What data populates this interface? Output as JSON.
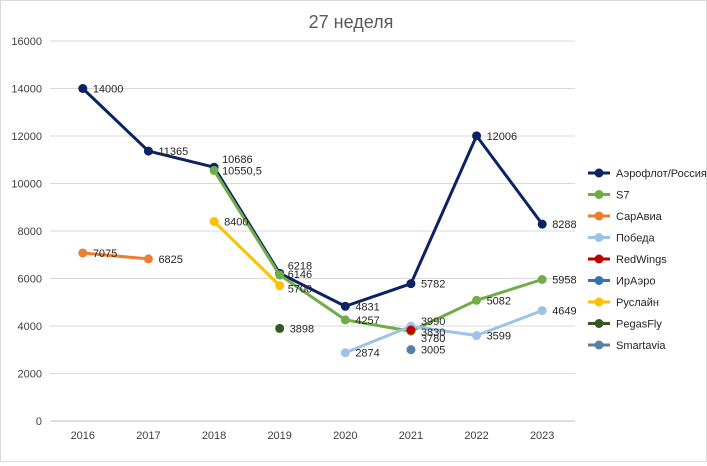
{
  "chart_data": {
    "type": "line",
    "title": "27 неделя",
    "x": [
      "2016",
      "2017",
      "2018",
      "2019",
      "2020",
      "2021",
      "2022",
      "2023"
    ],
    "ylim": [
      0,
      16000
    ],
    "yticks": [
      0,
      2000,
      4000,
      6000,
      8000,
      10000,
      12000,
      14000,
      16000
    ],
    "grid": true,
    "legend_position": "right",
    "series": [
      {
        "name": "Аэрофлот/Россия",
        "color": "#0b2264",
        "values": [
          14000,
          11365,
          10686,
          6218,
          4831,
          5782,
          12006,
          8288
        ],
        "labels": [
          "14000",
          "11365",
          "10686",
          "6218",
          "4831",
          "5782",
          "12006",
          "8288"
        ]
      },
      {
        "name": "S7",
        "color": "#70ad47",
        "values": [
          null,
          null,
          10550.5,
          6146,
          4257,
          3780,
          5082,
          5958
        ],
        "labels": [
          "",
          "",
          "10550,5",
          "6146",
          "4257",
          "3780",
          "5082",
          "5958"
        ]
      },
      {
        "name": "СарАвиа",
        "color": "#ed7d31",
        "values": [
          7075,
          6825,
          null,
          null,
          null,
          null,
          null,
          null
        ],
        "labels": [
          "7075",
          "6825",
          "",
          "",
          "",
          "",
          "",
          ""
        ]
      },
      {
        "name": "Победа",
        "color": "#9dc3e6",
        "values": [
          null,
          null,
          null,
          null,
          2874,
          3990,
          3599,
          4649
        ],
        "labels": [
          "",
          "",
          "",
          "",
          "2874",
          "3990",
          "3599",
          "4649"
        ]
      },
      {
        "name": "RedWings",
        "color": "#c00000",
        "values": [
          null,
          null,
          null,
          null,
          null,
          3830,
          null,
          null
        ],
        "labels": [
          "",
          "",
          "",
          "",
          "",
          "3830",
          "",
          ""
        ]
      },
      {
        "name": "ИрАэро",
        "color": "#2e75b6",
        "values": [
          null,
          null,
          null,
          null,
          null,
          null,
          null,
          null
        ],
        "labels": [
          "",
          "",
          "",
          "",
          "",
          "",
          "",
          ""
        ]
      },
      {
        "name": "Руслайн",
        "color": "#ffc000",
        "values": [
          null,
          null,
          8400,
          5700,
          null,
          null,
          null,
          null
        ],
        "labels": [
          "",
          "",
          "8400",
          "5700",
          "",
          "",
          "",
          ""
        ]
      },
      {
        "name": "PegasFly",
        "color": "#375623",
        "values": [
          null,
          null,
          null,
          3898,
          null,
          null,
          null,
          null
        ],
        "labels": [
          "",
          "",
          "",
          "3898",
          "",
          "",
          "",
          ""
        ]
      },
      {
        "name": "Smartavia",
        "color": "#5b7fa3",
        "values": [
          null,
          null,
          null,
          null,
          null,
          3005,
          null,
          null
        ],
        "labels": [
          "",
          "",
          "",
          "",
          "",
          "3005",
          "",
          ""
        ]
      }
    ]
  }
}
